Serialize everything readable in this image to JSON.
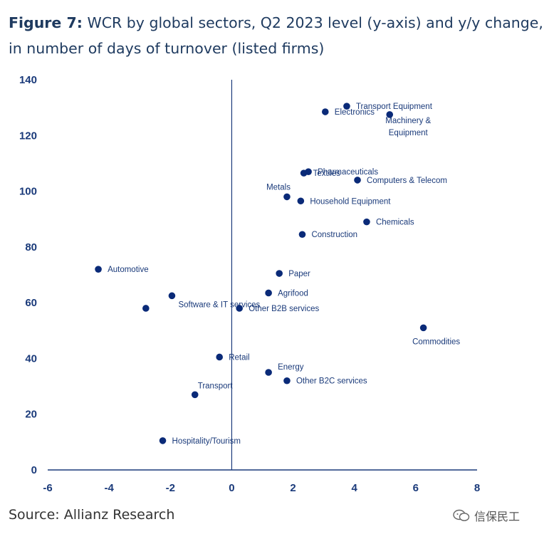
{
  "header": {
    "figure_label": "Figure 7:",
    "title_text": "WCR by global sectors, Q2 2023 level (y-axis) and y/y change, in number of days of turnover (listed firms)"
  },
  "footer": {
    "source": "Source: Allianz Research",
    "watermark": "信保民工"
  },
  "colors": {
    "axis": "#1a3a7a",
    "point": "#0a2a78",
    "tick_text": "#1a3a7a"
  },
  "chart_data": {
    "type": "scatter",
    "title": "WCR by global sectors, Q2 2023 level (y-axis) and y/y change, in number of days of turnover (listed firms)",
    "xlabel": "",
    "ylabel": "",
    "xlim": [
      -6,
      8
    ],
    "ylim": [
      0,
      140
    ],
    "x_ticks": [
      -6,
      -4,
      -2,
      0,
      2,
      4,
      6,
      8
    ],
    "y_ticks": [
      0,
      20,
      40,
      60,
      80,
      100,
      120,
      140
    ],
    "grid": false,
    "points": [
      {
        "label": "Transport Equipment",
        "x": 3.75,
        "y": 130.5
      },
      {
        "label": "Electronics",
        "x": 3.05,
        "y": 128.5
      },
      {
        "label": "Machinery & Equipment",
        "x": 5.15,
        "y": 127.5
      },
      {
        "label": "Pharmaceuticals",
        "x": 2.5,
        "y": 107
      },
      {
        "label": "Textiles",
        "x": 2.35,
        "y": 106.5
      },
      {
        "label": "Computers & Telecom",
        "x": 4.1,
        "y": 104
      },
      {
        "label": "Metals",
        "x": 1.8,
        "y": 98
      },
      {
        "label": "Household Equipment",
        "x": 2.25,
        "y": 96.5
      },
      {
        "label": "Chemicals",
        "x": 4.4,
        "y": 89
      },
      {
        "label": "Construction",
        "x": 2.3,
        "y": 84.5
      },
      {
        "label": "Automotive",
        "x": -4.35,
        "y": 72
      },
      {
        "label": "Paper",
        "x": 1.55,
        "y": 70.5
      },
      {
        "label": "Agrifood",
        "x": 1.2,
        "y": 63.5
      },
      {
        "label": "Software & IT services",
        "x": -1.95,
        "y": 62.5
      },
      {
        "label": "Other B2B services",
        "x": 0.25,
        "y": 58
      },
      {
        "label": "",
        "x": -2.8,
        "y": 58
      },
      {
        "label": "Commodities",
        "x": 6.25,
        "y": 51
      },
      {
        "label": "Retail",
        "x": -0.4,
        "y": 40.5
      },
      {
        "label": "Energy",
        "x": 1.2,
        "y": 35
      },
      {
        "label": "Other B2C services",
        "x": 1.8,
        "y": 32
      },
      {
        "label": "Transport",
        "x": -1.2,
        "y": 27
      },
      {
        "label": "Hospitality/Tourism",
        "x": -2.25,
        "y": 10.5
      }
    ]
  }
}
